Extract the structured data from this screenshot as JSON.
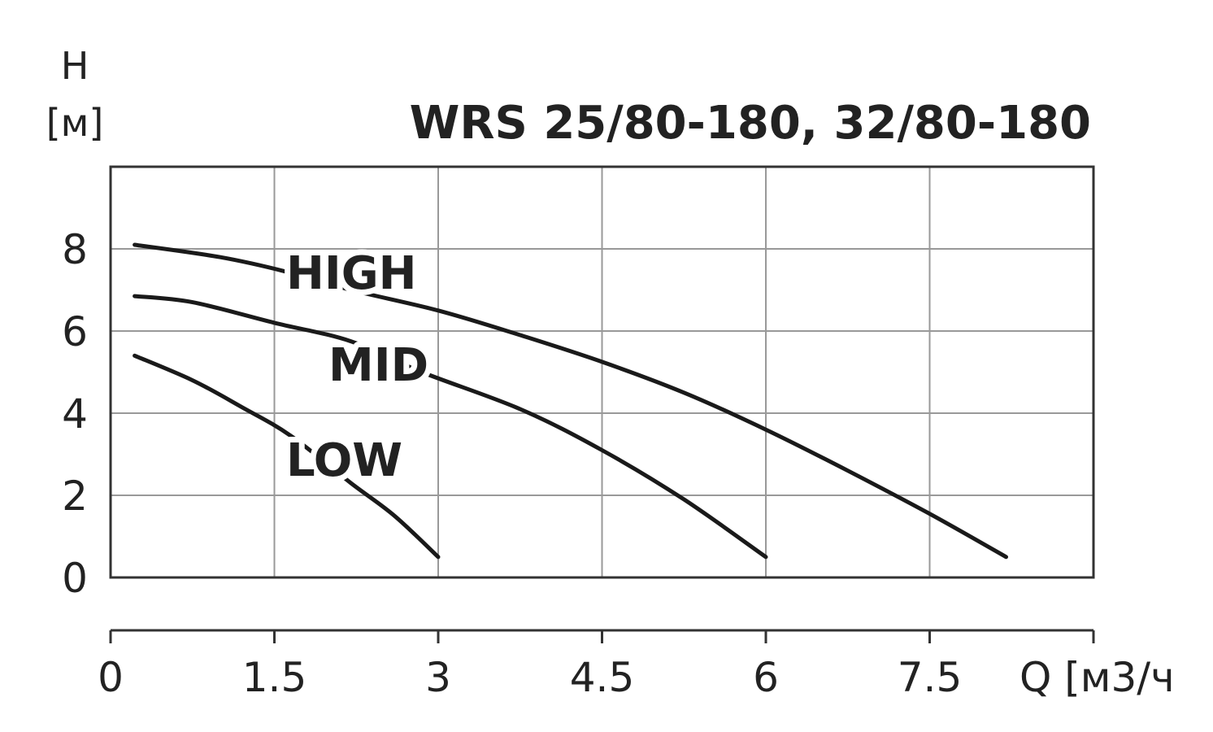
{
  "chart_data": {
    "type": "line",
    "title": "WRS 25/80-180, 32/80-180",
    "ylabel_symbol": "H",
    "ylabel_unit": "[м]",
    "xlabel": "Q [м3/ч]",
    "xlim": [
      0,
      9
    ],
    "ylim": [
      0,
      10
    ],
    "x_ticks": [
      "0",
      "1.5",
      "3",
      "4.5",
      "6",
      "7.5"
    ],
    "y_ticks": [
      "0",
      "2",
      "4",
      "6",
      "8"
    ],
    "grid": true,
    "series": [
      {
        "name": "HIGH",
        "x": [
          0.22,
          1.0,
          1.6,
          2.2,
          3.0,
          3.75,
          4.5,
          5.25,
          6.0,
          6.75,
          7.5,
          8.2
        ],
        "y": [
          8.1,
          7.8,
          7.45,
          7.0,
          6.5,
          5.9,
          5.25,
          4.5,
          3.6,
          2.6,
          1.55,
          0.5
        ]
      },
      {
        "name": "MID",
        "x": [
          0.22,
          0.75,
          1.5,
          2.2,
          2.85,
          3.75,
          4.5,
          5.25,
          6.0
        ],
        "y": [
          6.85,
          6.7,
          6.2,
          5.75,
          5.0,
          4.1,
          3.1,
          1.9,
          0.5
        ]
      },
      {
        "name": "LOW",
        "x": [
          0.22,
          0.75,
          1.2,
          1.65,
          2.2,
          2.6,
          3.0
        ],
        "y": [
          5.4,
          4.8,
          4.15,
          3.45,
          2.3,
          1.5,
          0.5
        ]
      }
    ]
  }
}
